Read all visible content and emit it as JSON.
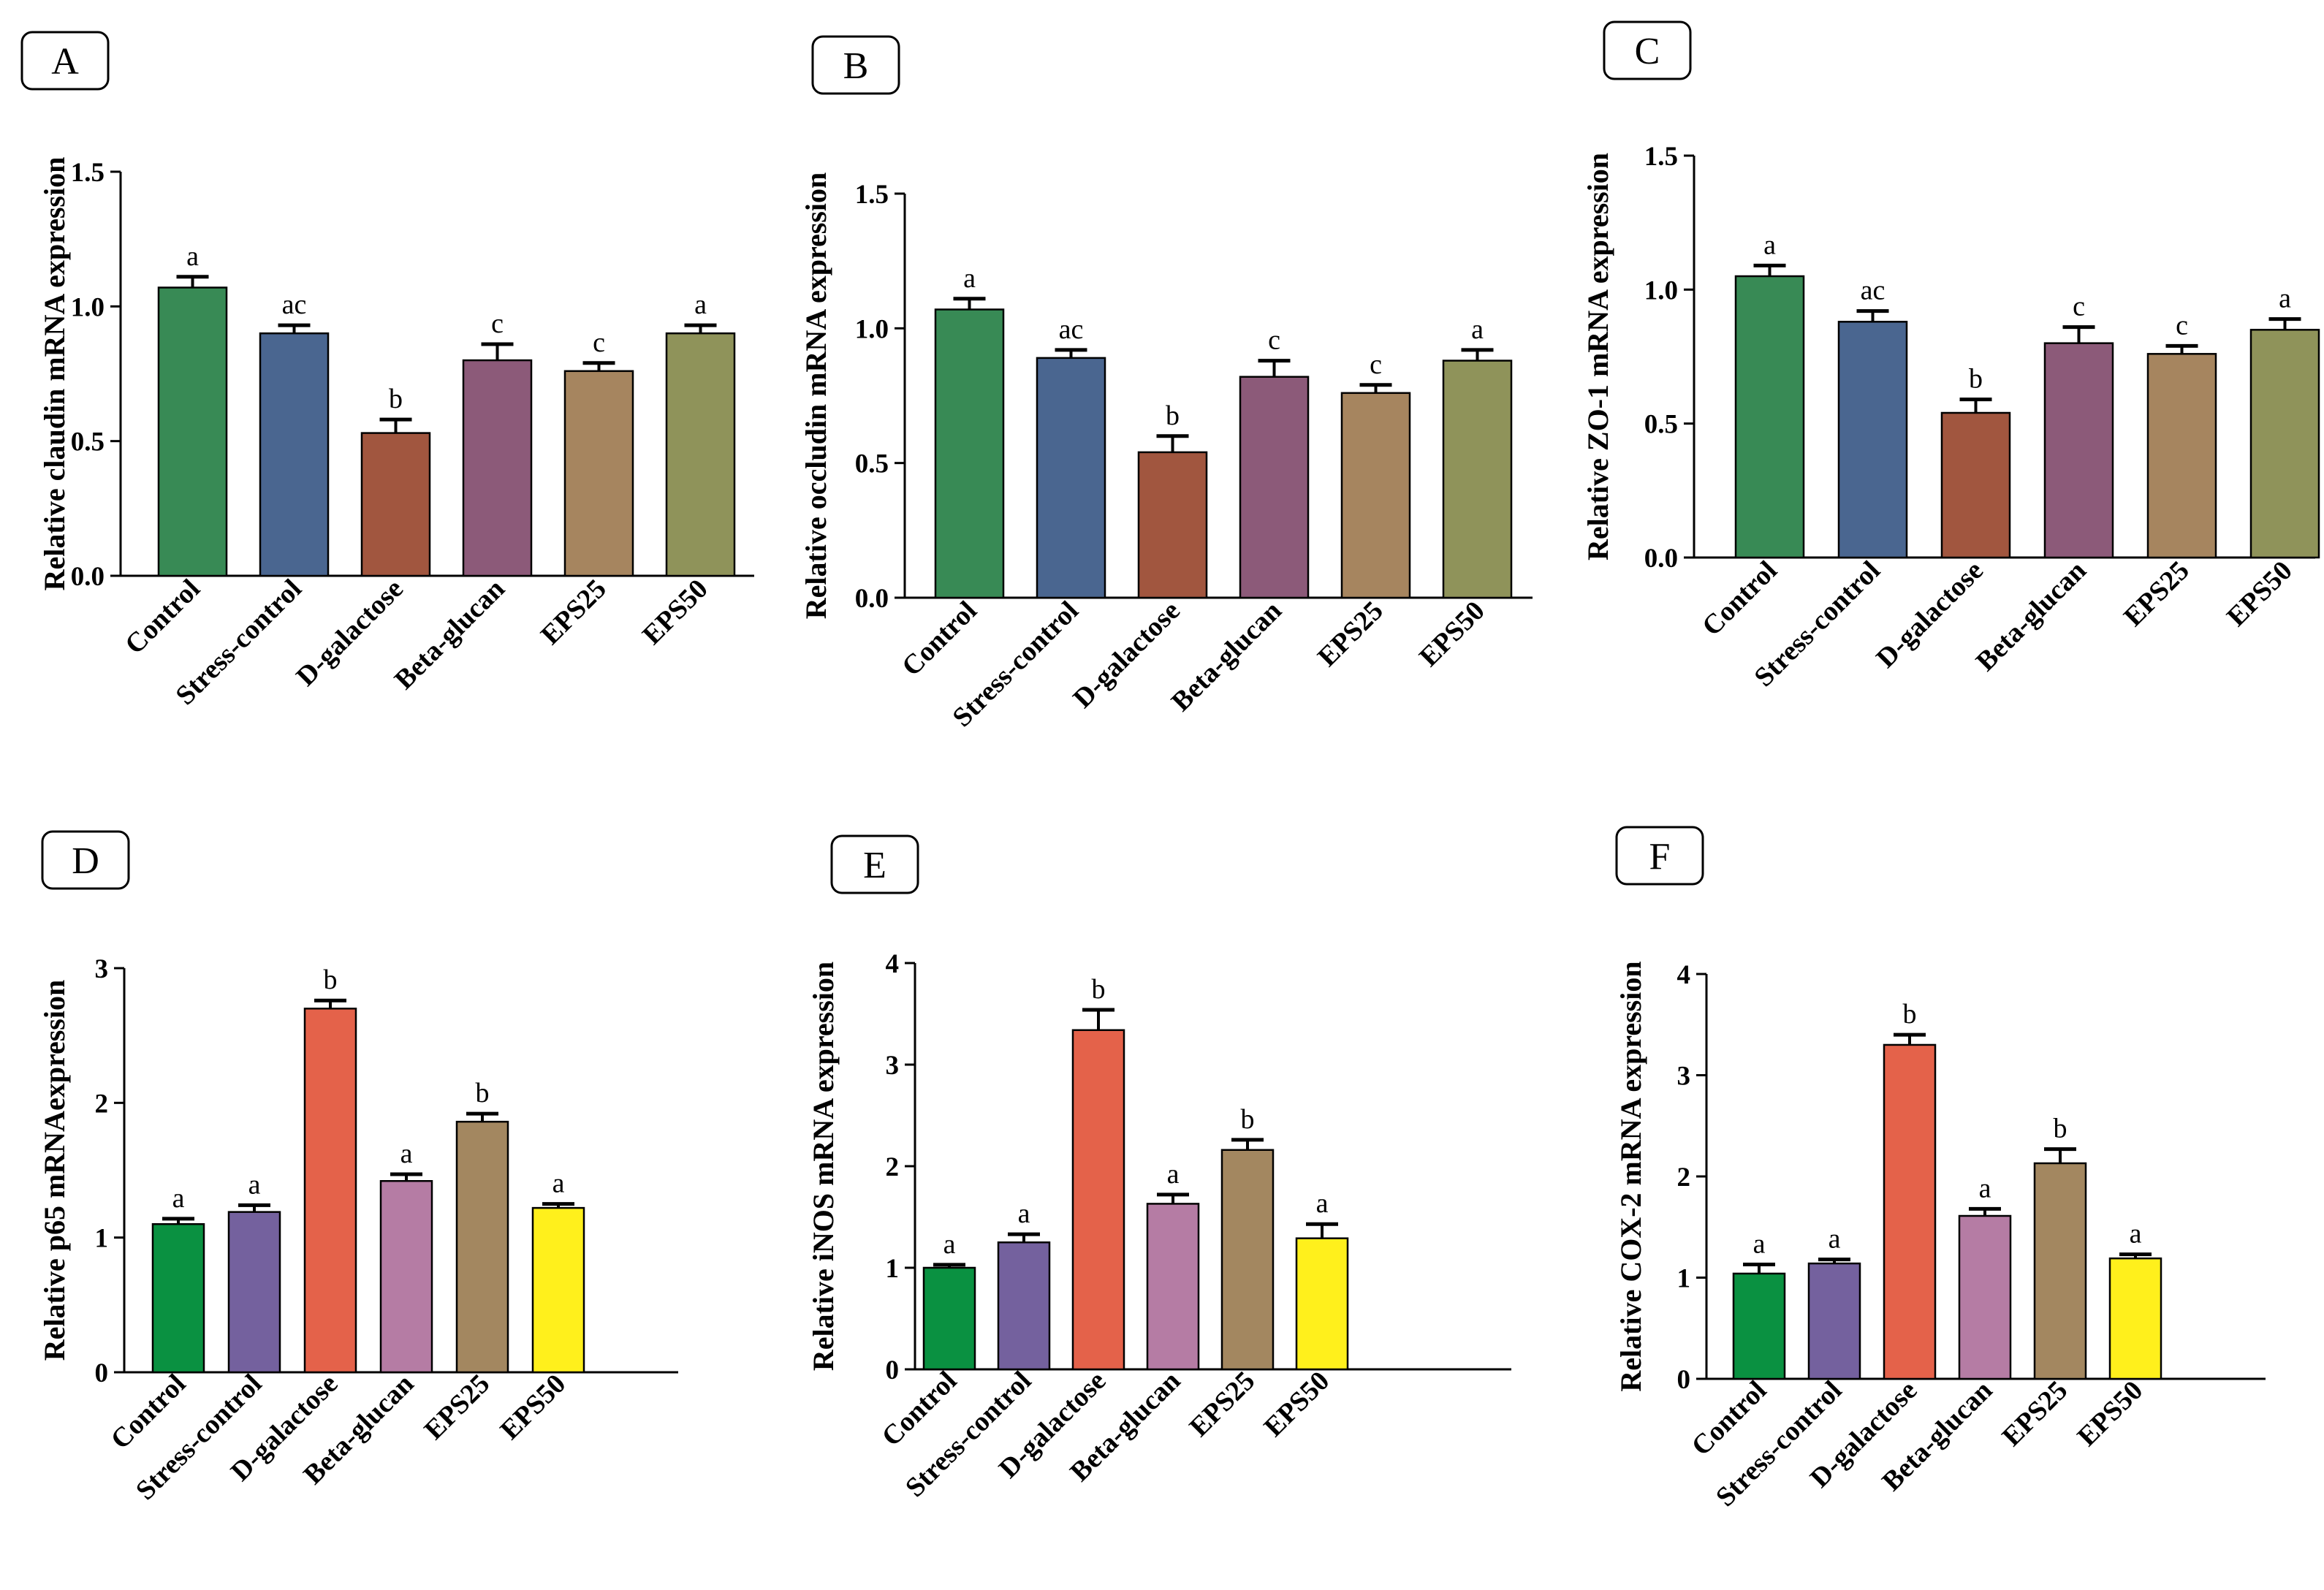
{
  "colors": {
    "top_row": [
      "#388a55",
      "#4a6690",
      "#a1563f",
      "#8c5a79",
      "#a6855f",
      "#8f935a"
    ],
    "bottom_row": [
      "#0a9141",
      "#74619e",
      "#e4624a",
      "#b57ca4",
      "#a38760",
      "#fff01c"
    ]
  },
  "chart_data": [
    {
      "type": "bar",
      "panel_label": "A",
      "ylabel": "Relative claudin mRNA expression",
      "categories": [
        "Control",
        "Stress-control",
        "D-galactose",
        "Beta-glucan",
        "EPS25",
        "EPS50"
      ],
      "values": [
        1.07,
        0.9,
        0.53,
        0.8,
        0.76,
        0.9
      ],
      "errors": [
        0.04,
        0.03,
        0.05,
        0.06,
        0.03,
        0.03
      ],
      "significance": [
        "a",
        "ac",
        "b",
        "c",
        "c",
        "a"
      ],
      "ylim": [
        0,
        1.5
      ],
      "yticks": [
        "0.0",
        "0.5",
        "1.0",
        "1.5"
      ]
    },
    {
      "type": "bar",
      "panel_label": "B",
      "ylabel": "Relative occludin mRNA expression",
      "categories": [
        "Control",
        "Stress-control",
        "D-galactose",
        "Beta-glucan",
        "EPS25",
        "EPS50"
      ],
      "values": [
        1.07,
        0.89,
        0.54,
        0.82,
        0.76,
        0.88
      ],
      "errors": [
        0.04,
        0.03,
        0.06,
        0.06,
        0.03,
        0.04
      ],
      "significance": [
        "a",
        "ac",
        "b",
        "c",
        "c",
        "a"
      ],
      "ylim": [
        0,
        1.5
      ],
      "yticks": [
        "0.0",
        "0.5",
        "1.0",
        "1.5"
      ]
    },
    {
      "type": "bar",
      "panel_label": "C",
      "ylabel": "Relative ZO-1 mRNA expression",
      "categories": [
        "Control",
        "Stress-control",
        "D-galactose",
        "Beta-glucan",
        "EPS25",
        "EPS50"
      ],
      "values": [
        1.05,
        0.88,
        0.54,
        0.8,
        0.76,
        0.85
      ],
      "errors": [
        0.04,
        0.04,
        0.05,
        0.06,
        0.03,
        0.04
      ],
      "significance": [
        "a",
        "ac",
        "b",
        "c",
        "c",
        "a"
      ],
      "ylim": [
        0,
        1.5
      ],
      "yticks": [
        "0.0",
        "0.5",
        "1.0",
        "1.5"
      ]
    },
    {
      "type": "bar",
      "panel_label": "D",
      "ylabel": "Relative p65 mRNAexpression",
      "categories": [
        "Control",
        "Stress-control",
        "D-galactose",
        "Beta-glucan",
        "EPS25",
        "EPS50"
      ],
      "values": [
        1.1,
        1.19,
        2.7,
        1.42,
        1.86,
        1.22
      ],
      "errors": [
        0.04,
        0.05,
        0.06,
        0.05,
        0.06,
        0.03
      ],
      "significance": [
        "a",
        "a",
        "b",
        "a",
        "b",
        "a"
      ],
      "ylim": [
        0,
        3
      ],
      "yticks": [
        "0",
        "1",
        "2",
        "3"
      ]
    },
    {
      "type": "bar",
      "panel_label": "E",
      "ylabel": "Relative iNOS mRNA expression",
      "categories": [
        "Control",
        "Stress-control",
        "D-galactose",
        "Beta-glucan",
        "EPS25",
        "EPS50"
      ],
      "values": [
        1.0,
        1.25,
        3.34,
        1.63,
        2.16,
        1.29
      ],
      "errors": [
        0.03,
        0.08,
        0.2,
        0.09,
        0.1,
        0.14
      ],
      "significance": [
        "a",
        "a",
        "b",
        "a",
        "b",
        "a"
      ],
      "ylim": [
        0,
        4
      ],
      "yticks": [
        "0",
        "1",
        "2",
        "3",
        "4"
      ]
    },
    {
      "type": "bar",
      "panel_label": "F",
      "ylabel": "Relative COX-2 mRNA expression",
      "categories": [
        "Control",
        "Stress-control",
        "D-galactose",
        "Beta-glucan",
        "EPS25",
        "EPS50"
      ],
      "values": [
        1.04,
        1.14,
        3.3,
        1.61,
        2.13,
        1.19
      ],
      "errors": [
        0.09,
        0.04,
        0.1,
        0.07,
        0.14,
        0.04
      ],
      "significance": [
        "a",
        "a",
        "b",
        "a",
        "b",
        "a"
      ],
      "ylim": [
        0,
        4
      ],
      "yticks": [
        "0",
        "1",
        "2",
        "3",
        "4"
      ]
    }
  ]
}
